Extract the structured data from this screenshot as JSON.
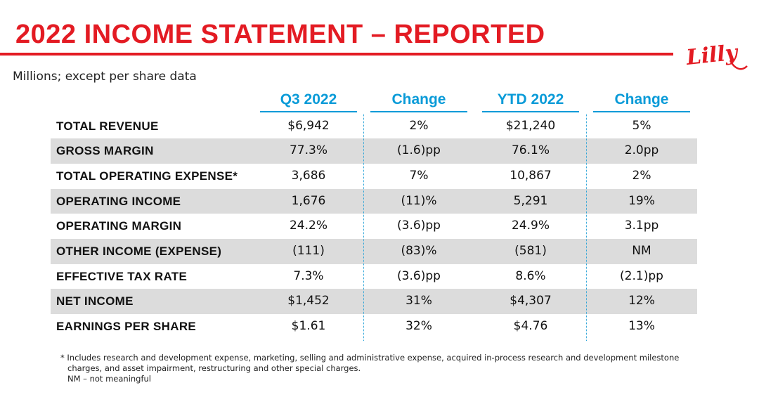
{
  "title": "2022 INCOME STATEMENT – REPORTED",
  "subtitle": "Millions; except per share data",
  "brand": {
    "logo_text": "Lilly",
    "accent": "#e31b23",
    "header_blue": "#0a9bd8"
  },
  "columns": [
    "Q3 2022",
    "Change",
    "YTD 2022",
    "Change"
  ],
  "rows": [
    {
      "label": "TOTAL REVENUE",
      "values": [
        "$6,942",
        "2%",
        "$21,240",
        "5%"
      ]
    },
    {
      "label": "GROSS MARGIN",
      "values": [
        "77.3%",
        "(1.6)pp",
        "76.1%",
        "2.0pp"
      ]
    },
    {
      "label": "TOTAL OPERATING EXPENSE*",
      "values": [
        "3,686",
        "7%",
        "10,867",
        "2%"
      ]
    },
    {
      "label": "OPERATING INCOME",
      "values": [
        "1,676",
        "(11)%",
        "5,291",
        "19%"
      ]
    },
    {
      "label": "OPERATING MARGIN",
      "values": [
        "24.2%",
        "(3.6)pp",
        "24.9%",
        "3.1pp"
      ]
    },
    {
      "label": "OTHER INCOME (EXPENSE)",
      "values": [
        "(111)",
        "(83)%",
        "(581)",
        "NM"
      ]
    },
    {
      "label": "EFFECTIVE TAX RATE",
      "values": [
        "7.3%",
        "(3.6)pp",
        "8.6%",
        "(2.1)pp"
      ]
    },
    {
      "label": "NET INCOME",
      "values": [
        "$1,452",
        "31%",
        "$4,307",
        "12%"
      ]
    },
    {
      "label": "EARNINGS PER SHARE",
      "values": [
        "$1.61",
        "32%",
        "$4.76",
        "13%"
      ]
    }
  ],
  "footnote": {
    "line1": "* Includes research and development expense, marketing, selling and administrative expense, acquired in-process research and development milestone",
    "line2": "charges, and asset impairment, restructuring and other special charges.",
    "line3": "NM – not meaningful"
  }
}
